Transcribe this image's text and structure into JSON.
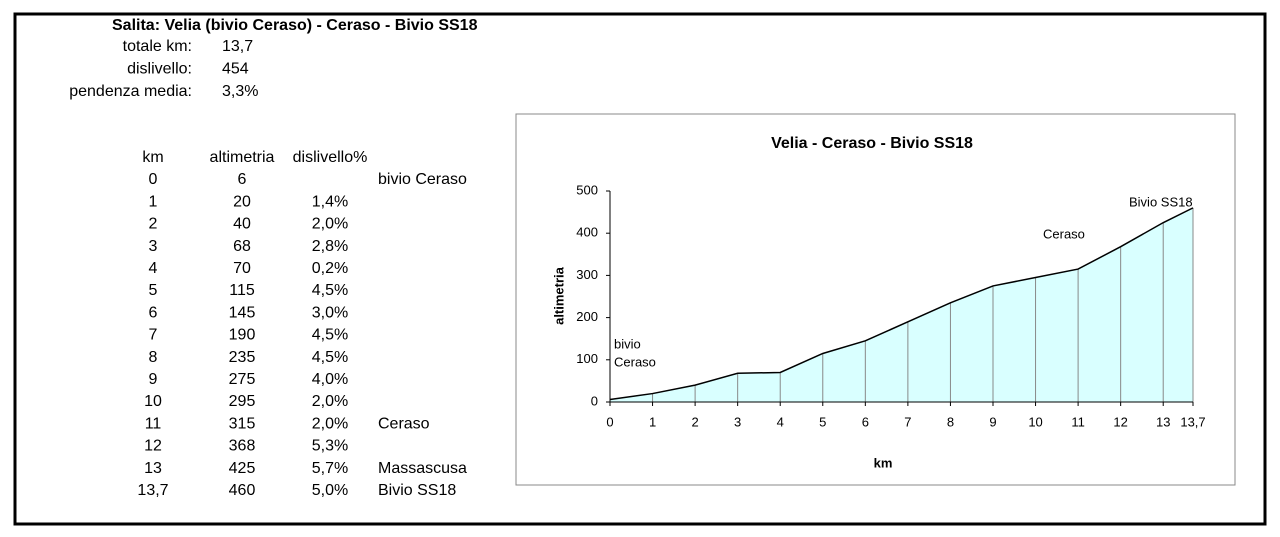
{
  "header": {
    "title": "Salita: Velia (bivio Ceraso) - Ceraso - Bivio SS18",
    "summary": [
      [
        "totale km:",
        "13,7"
      ],
      [
        "dislivello:",
        "454"
      ],
      [
        "pendenza media:",
        "3,3%"
      ]
    ]
  },
  "table": {
    "columns": [
      "km",
      "altimetria",
      "dislivello%"
    ],
    "rows": [
      {
        "km": "0",
        "alt": "6",
        "note": "bivio Ceraso"
      },
      {
        "km": "1",
        "alt": "20",
        "pct": "1,4%"
      },
      {
        "km": "2",
        "alt": "40",
        "pct": "2,0%"
      },
      {
        "km": "3",
        "alt": "68",
        "pct": "2,8%"
      },
      {
        "km": "4",
        "alt": "70",
        "pct": "0,2%"
      },
      {
        "km": "5",
        "alt": "115",
        "pct": "4,5%"
      },
      {
        "km": "6",
        "alt": "145",
        "pct": "3,0%"
      },
      {
        "km": "7",
        "alt": "190",
        "pct": "4,5%"
      },
      {
        "km": "8",
        "alt": "235",
        "pct": "4,5%"
      },
      {
        "km": "9",
        "alt": "275",
        "pct": "4,0%"
      },
      {
        "km": "10",
        "alt": "295",
        "pct": "2,0%"
      },
      {
        "km": "11",
        "alt": "315",
        "pct": "2,0%",
        "note": "Ceraso"
      },
      {
        "km": "12",
        "alt": "368",
        "pct": "5,3%"
      },
      {
        "km": "13",
        "alt": "425",
        "pct": "5,7%",
        "note": "Massascusa"
      },
      {
        "km": "13,7",
        "alt": "460",
        "pct": "5,0%",
        "note": "Bivio SS18"
      }
    ]
  },
  "chart_data": {
    "type": "area",
    "title": "Velia - Ceraso - Bivio SS18",
    "xlabel": "km",
    "ylabel": "altimetria",
    "x": [
      0,
      1,
      2,
      3,
      4,
      5,
      6,
      7,
      8,
      9,
      10,
      11,
      12,
      13,
      13.7
    ],
    "values": [
      6,
      20,
      40,
      68,
      70,
      115,
      145,
      190,
      235,
      275,
      295,
      315,
      368,
      425,
      460
    ],
    "color": "#d9ffff",
    "line_color": "#000000",
    "xlim": [
      0,
      13.7
    ],
    "xticks": [
      0,
      1,
      2,
      3,
      4,
      5,
      6,
      7,
      8,
      9,
      10,
      11,
      12,
      13,
      {
        "value": 13.7,
        "label": "13,7"
      }
    ],
    "ylim": [
      0,
      500
    ],
    "yticks": [
      0,
      100,
      200,
      300,
      400,
      500
    ],
    "annotations": [
      [
        "bivio",
        "Ceraso"
      ],
      [
        "Ceraso"
      ],
      [
        "Bivio SS18"
      ]
    ]
  }
}
